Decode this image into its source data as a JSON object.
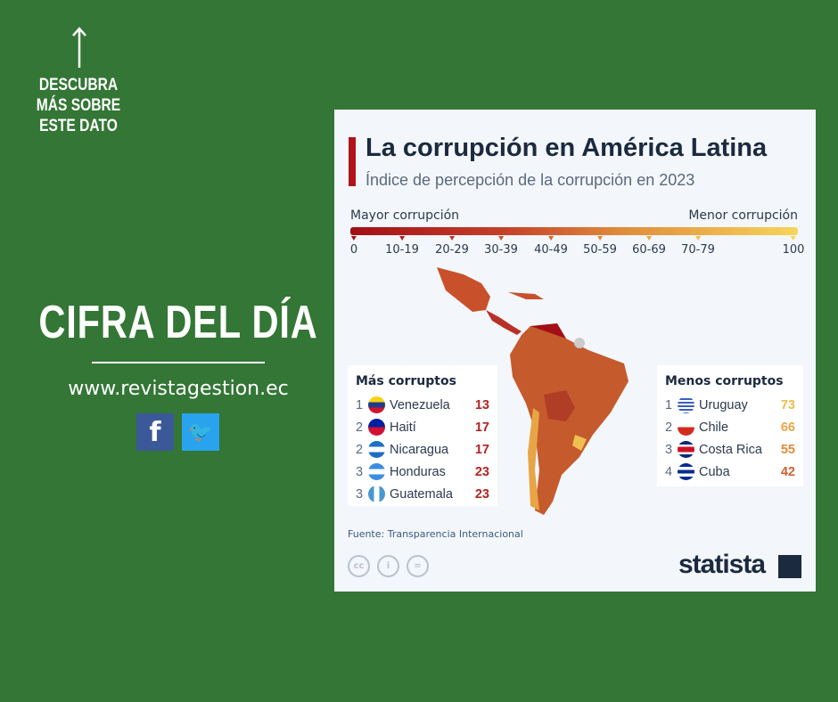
{
  "promo": {
    "more_text": "DESCUBRA MÁS SOBRE ESTE DATO",
    "headline": "CIFRA DEL DÍA",
    "url": "www.revistagestion.ec",
    "social": [
      {
        "name": "facebook",
        "glyph": "f",
        "color": "#3b5998"
      },
      {
        "name": "twitter",
        "glyph": "🐦",
        "color": "#2aa3ef"
      }
    ]
  },
  "card": {
    "title": "La corrupción en América Latina",
    "subtitle": "Índice de percepción de la corrupción en 2023",
    "legend": {
      "left": "Mayor corrupción",
      "right": "Menor corrupción",
      "ticks": [
        "0",
        "10-19",
        "20-29",
        "30-39",
        "40-49",
        "50-59",
        "60-69",
        "70-79",
        "100"
      ],
      "colors": [
        "#a20f17",
        "#b01e1e",
        "#bf3325",
        "#c8512c",
        "#d46a32",
        "#e08a3a",
        "#eaa845",
        "#f1c24f",
        "#f5d65a"
      ]
    },
    "most": {
      "heading": "Más corruptos",
      "items": [
        {
          "rank": "1",
          "country": "Venezuela",
          "value": "13"
        },
        {
          "rank": "2",
          "country": "Haití",
          "value": "17"
        },
        {
          "rank": "2",
          "country": "Nicaragua",
          "value": "17"
        },
        {
          "rank": "3",
          "country": "Honduras",
          "value": "23"
        },
        {
          "rank": "3",
          "country": "Guatemala",
          "value": "23"
        }
      ],
      "value_color": "#b52222"
    },
    "least": {
      "heading": "Menos corruptos",
      "items": [
        {
          "rank": "1",
          "country": "Uruguay",
          "value": "73",
          "color": "#efbd4c"
        },
        {
          "rank": "2",
          "country": "Chile",
          "value": "66",
          "color": "#e8a545"
        },
        {
          "rank": "3",
          "country": "Costa Rica",
          "value": "55",
          "color": "#e08a3a"
        },
        {
          "rank": "4",
          "country": "Cuba",
          "value": "42",
          "color": "#cf6130"
        }
      ]
    },
    "source": "Fuente: Transparencia Internacional",
    "license_icons": [
      "cc",
      "by",
      "nd"
    ],
    "logo": "statista"
  }
}
